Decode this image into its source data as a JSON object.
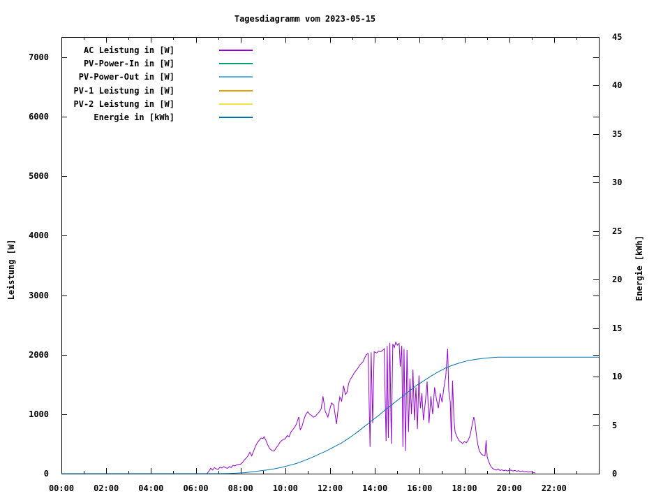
{
  "page": {
    "background": "#ffffff",
    "text_color": "#000000"
  },
  "chart_data": {
    "type": "line",
    "title": "Tagesdiagramm vom 2023-05-15",
    "grid": false,
    "legend_position": "inside-top-left",
    "x_axis": {
      "unit": "time (hh:mm)",
      "range_hours": [
        0,
        24
      ],
      "major_tick_labels": [
        "00:00",
        "02:00",
        "04:00",
        "06:00",
        "08:00",
        "10:00",
        "12:00",
        "14:00",
        "16:00",
        "18:00",
        "20:00",
        "22:00"
      ],
      "minor_tick_every_hours": 1
    },
    "y_axis_left": {
      "label": "Leistung [W]",
      "range": [
        0,
        7340
      ],
      "ticks": [
        0,
        1000,
        2000,
        3000,
        4000,
        5000,
        6000,
        7000
      ]
    },
    "y_axis_right": {
      "label": "Energie [kWh]",
      "range": [
        0,
        45
      ],
      "ticks": [
        0,
        5,
        10,
        15,
        20,
        25,
        30,
        35,
        40,
        45
      ]
    },
    "series": [
      {
        "name": "AC Leistung in [W]",
        "color": "#9400d3",
        "axis": "left",
        "drawn": true,
        "points": [
          [
            390,
            0
          ],
          [
            395,
            40
          ],
          [
            400,
            90
          ],
          [
            405,
            60
          ],
          [
            410,
            100
          ],
          [
            415,
            80
          ],
          [
            420,
            70
          ],
          [
            425,
            110
          ],
          [
            430,
            95
          ],
          [
            435,
            120
          ],
          [
            440,
            100
          ],
          [
            445,
            90
          ],
          [
            450,
            120
          ],
          [
            455,
            105
          ],
          [
            460,
            140
          ],
          [
            465,
            130
          ],
          [
            470,
            150
          ],
          [
            480,
            160
          ],
          [
            485,
            185
          ],
          [
            490,
            230
          ],
          [
            495,
            260
          ],
          [
            500,
            300
          ],
          [
            505,
            360
          ],
          [
            510,
            300
          ],
          [
            515,
            380
          ],
          [
            520,
            460
          ],
          [
            525,
            520
          ],
          [
            530,
            560
          ],
          [
            535,
            600
          ],
          [
            540,
            590
          ],
          [
            543,
            620
          ],
          [
            548,
            560
          ],
          [
            553,
            480
          ],
          [
            558,
            420
          ],
          [
            565,
            385
          ],
          [
            570,
            380
          ],
          [
            575,
            430
          ],
          [
            580,
            470
          ],
          [
            585,
            520
          ],
          [
            590,
            555
          ],
          [
            595,
            575
          ],
          [
            600,
            590
          ],
          [
            605,
            640
          ],
          [
            610,
            620
          ],
          [
            615,
            700
          ],
          [
            620,
            740
          ],
          [
            625,
            780
          ],
          [
            630,
            840
          ],
          [
            633,
            900
          ],
          [
            636,
            950
          ],
          [
            640,
            740
          ],
          [
            644,
            780
          ],
          [
            648,
            870
          ],
          [
            652,
            950
          ],
          [
            656,
            1010
          ],
          [
            660,
            1040
          ],
          [
            665,
            1000
          ],
          [
            670,
            980
          ],
          [
            675,
            950
          ],
          [
            680,
            960
          ],
          [
            685,
            1000
          ],
          [
            690,
            1030
          ],
          [
            696,
            1090
          ],
          [
            701,
            1300
          ],
          [
            707,
            1050
          ],
          [
            714,
            950
          ],
          [
            720,
            1100
          ],
          [
            724,
            1190
          ],
          [
            730,
            1150
          ],
          [
            737,
            835
          ],
          [
            742,
            1120
          ],
          [
            746,
            1290
          ],
          [
            751,
            1220
          ],
          [
            756,
            1480
          ],
          [
            761,
            1330
          ],
          [
            765,
            1365
          ],
          [
            770,
            1520
          ],
          [
            774,
            1585
          ],
          [
            780,
            1640
          ],
          [
            785,
            1700
          ],
          [
            793,
            1760
          ],
          [
            800,
            1830
          ],
          [
            808,
            1880
          ],
          [
            813,
            1950
          ],
          [
            817,
            2000
          ],
          [
            822,
            2020
          ],
          [
            827,
            450
          ],
          [
            830,
            2040
          ],
          [
            834,
            850
          ],
          [
            838,
            2050
          ],
          [
            845,
            2030
          ],
          [
            850,
            2060
          ],
          [
            855,
            2050
          ],
          [
            860,
            2070
          ],
          [
            865,
            2100
          ],
          [
            870,
            550
          ],
          [
            873,
            2150
          ],
          [
            876,
            600
          ],
          [
            880,
            2200
          ],
          [
            884,
            500
          ],
          [
            888,
            2180
          ],
          [
            892,
            2120
          ],
          [
            896,
            2210
          ],
          [
            900,
            2160
          ],
          [
            905,
            2190
          ],
          [
            908,
            1800
          ],
          [
            912,
            2150
          ],
          [
            915,
            450
          ],
          [
            918,
            2100
          ],
          [
            922,
            380
          ],
          [
            926,
            2080
          ],
          [
            930,
            700
          ],
          [
            934,
            1600
          ],
          [
            938,
            1000
          ],
          [
            942,
            1750
          ],
          [
            946,
            900
          ],
          [
            950,
            1450
          ],
          [
            954,
            750
          ],
          [
            958,
            1650
          ],
          [
            962,
            1100
          ],
          [
            966,
            1350
          ],
          [
            970,
            900
          ],
          [
            975,
            1200
          ],
          [
            980,
            1550
          ],
          [
            985,
            850
          ],
          [
            990,
            1300
          ],
          [
            995,
            1000
          ],
          [
            1000,
            1450
          ],
          [
            1005,
            1250
          ],
          [
            1010,
            1100
          ],
          [
            1015,
            1350
          ],
          [
            1020,
            1200
          ],
          [
            1025,
            1450
          ],
          [
            1030,
            1650
          ],
          [
            1035,
            2100
          ],
          [
            1038,
            1400
          ],
          [
            1042,
            1200
          ],
          [
            1045,
            540
          ],
          [
            1048,
            1565
          ],
          [
            1052,
            900
          ],
          [
            1055,
            700
          ],
          [
            1060,
            620
          ],
          [
            1065,
            560
          ],
          [
            1070,
            530
          ],
          [
            1075,
            510
          ],
          [
            1080,
            540
          ],
          [
            1085,
            520
          ],
          [
            1090,
            560
          ],
          [
            1095,
            640
          ],
          [
            1100,
            800
          ],
          [
            1105,
            950
          ],
          [
            1108,
            870
          ],
          [
            1112,
            650
          ],
          [
            1116,
            480
          ],
          [
            1120,
            380
          ],
          [
            1125,
            330
          ],
          [
            1130,
            310
          ],
          [
            1135,
            300
          ],
          [
            1138,
            560
          ],
          [
            1141,
            280
          ],
          [
            1145,
            200
          ],
          [
            1150,
            130
          ],
          [
            1155,
            90
          ],
          [
            1160,
            70
          ],
          [
            1165,
            60
          ],
          [
            1170,
            80
          ],
          [
            1175,
            55
          ],
          [
            1180,
            65
          ],
          [
            1185,
            50
          ],
          [
            1190,
            60
          ],
          [
            1195,
            45
          ],
          [
            1200,
            55
          ],
          [
            1205,
            60
          ],
          [
            1210,
            45
          ],
          [
            1215,
            55
          ],
          [
            1220,
            40
          ],
          [
            1225,
            50
          ],
          [
            1230,
            35
          ],
          [
            1235,
            45
          ],
          [
            1240,
            30
          ],
          [
            1245,
            40
          ],
          [
            1250,
            25
          ],
          [
            1255,
            30
          ],
          [
            1260,
            30
          ],
          [
            1265,
            20
          ],
          [
            1270,
            10
          ]
        ]
      },
      {
        "name": "PV-Power-In in [W]",
        "color": "#009e73",
        "axis": "left",
        "drawn": false,
        "points": []
      },
      {
        "name": "PV-Power-Out in [W]",
        "color": "#56b4e9",
        "axis": "left",
        "drawn": false,
        "points": []
      },
      {
        "name": "PV-1 Leistung in [W]",
        "color": "#e69f00",
        "axis": "left",
        "drawn": false,
        "points": []
      },
      {
        "name": "PV-2 Leistung in [W]",
        "color": "#f0e442",
        "axis": "left",
        "drawn": false,
        "points": []
      },
      {
        "name": "Energie in [kWh]",
        "color": "#0072b2",
        "axis": "right",
        "drawn": true,
        "points": [
          [
            0,
            0
          ],
          [
            60,
            0
          ],
          [
            120,
            0
          ],
          [
            180,
            0
          ],
          [
            240,
            0
          ],
          [
            300,
            0
          ],
          [
            360,
            0
          ],
          [
            420,
            0
          ],
          [
            450,
            0.02
          ],
          [
            470,
            0.05
          ],
          [
            490,
            0.1
          ],
          [
            510,
            0.18
          ],
          [
            530,
            0.28
          ],
          [
            550,
            0.38
          ],
          [
            570,
            0.5
          ],
          [
            590,
            0.65
          ],
          [
            610,
            0.85
          ],
          [
            630,
            1.05
          ],
          [
            650,
            1.35
          ],
          [
            670,
            1.65
          ],
          [
            690,
            2.0
          ],
          [
            710,
            2.35
          ],
          [
            730,
            2.75
          ],
          [
            750,
            3.15
          ],
          [
            770,
            3.65
          ],
          [
            790,
            4.2
          ],
          [
            810,
            4.8
          ],
          [
            830,
            5.4
          ],
          [
            850,
            6.0
          ],
          [
            870,
            6.65
          ],
          [
            890,
            7.25
          ],
          [
            910,
            7.85
          ],
          [
            930,
            8.45
          ],
          [
            950,
            9.05
          ],
          [
            970,
            9.55
          ],
          [
            990,
            10.05
          ],
          [
            1010,
            10.5
          ],
          [
            1030,
            10.9
          ],
          [
            1050,
            11.2
          ],
          [
            1070,
            11.45
          ],
          [
            1090,
            11.65
          ],
          [
            1110,
            11.78
          ],
          [
            1130,
            11.88
          ],
          [
            1150,
            11.95
          ],
          [
            1170,
            12.0
          ],
          [
            1200,
            12.0
          ],
          [
            1260,
            12.0
          ],
          [
            1320,
            12.0
          ],
          [
            1380,
            12.0
          ],
          [
            1440,
            12.0
          ]
        ]
      }
    ]
  }
}
